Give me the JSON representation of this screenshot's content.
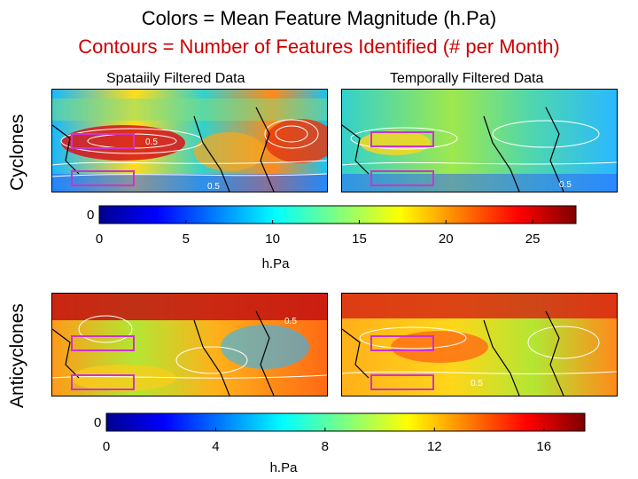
{
  "header": {
    "line1": "Colors = Mean Feature Magnitude (h.Pa)",
    "line2": "Contours = Number of Features Identified (# per Month)"
  },
  "rows": {
    "cyclones": "Cyclones",
    "anticyclones": "Anticyclones"
  },
  "panels": {
    "spatial_title": "Spataiily Filtered Data",
    "temporal_title": "Temporally Filtered Data"
  },
  "contour_labels": {
    "c_spatial_a": "0.5",
    "c_spatial_b": "0.5",
    "c_temporal": "0.5",
    "a_spatial": "0.5",
    "a_temporal": "0.5"
  },
  "colors": {
    "box": "#cc33cc",
    "contour": "#ffffff",
    "coast": "#000000"
  },
  "chart_data": [
    {
      "type": "heatmap",
      "title": "Cyclones",
      "panels": [
        "Spataiily Filtered Data",
        "Temporally Filtered Data"
      ],
      "colorbar": {
        "unit": "h.Pa",
        "ticks": [
          0,
          5,
          10,
          15,
          20,
          25
        ],
        "range": [
          0,
          27.5
        ],
        "zero_marker": "0",
        "colormap": "jet"
      }
    },
    {
      "type": "heatmap",
      "title": "Anticyclones",
      "panels": [
        "Spataiily Filtered Data",
        "Temporally Filtered Data"
      ],
      "colorbar": {
        "unit": "h.Pa",
        "ticks": [
          0,
          4,
          8,
          12,
          16
        ],
        "range": [
          0,
          17.5
        ],
        "zero_marker": "0",
        "colormap": "jet"
      }
    }
  ]
}
